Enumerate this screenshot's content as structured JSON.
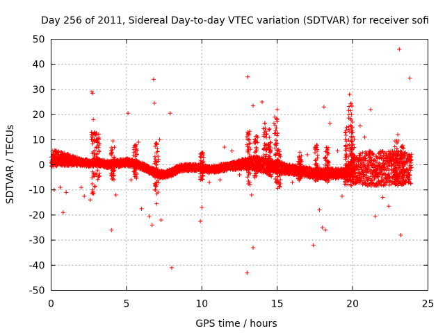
{
  "chart_data": {
    "type": "scatter",
    "title": "Day 256 of 2011, Sidereal Day-to-day VTEC variation (SDTVAR) for receiver sofi",
    "xlabel": "GPS time / hours",
    "ylabel": "SDTVAR / TECUs",
    "xlim": [
      0,
      25
    ],
    "ylim": [
      -50,
      50
    ],
    "xticks": [
      0,
      5,
      10,
      15,
      20,
      25
    ],
    "yticks": [
      -50,
      -40,
      -30,
      -20,
      -10,
      0,
      10,
      20,
      30,
      40,
      50
    ],
    "xtick_labels": [
      "0",
      "5",
      "10",
      "15",
      "20",
      "25"
    ],
    "ytick_labels": [
      "-50",
      "-40",
      "-30",
      "-20",
      "-10",
      "0",
      "10",
      "20",
      "30",
      "40",
      "50"
    ],
    "grid": true,
    "marker": "+",
    "series_color": "#ff0000",
    "band_center": [
      [
        0,
        2.5
      ],
      [
        0.5,
        2.5
      ],
      [
        1,
        2
      ],
      [
        1.5,
        1.5
      ],
      [
        2,
        1
      ],
      [
        2.5,
        0.5
      ],
      [
        3,
        1
      ],
      [
        3.5,
        0.5
      ],
      [
        4,
        0
      ],
      [
        4.5,
        0.5
      ],
      [
        5,
        1
      ],
      [
        5.5,
        0.5
      ],
      [
        6,
        -0.5
      ],
      [
        6.5,
        -2
      ],
      [
        7,
        -3.5
      ],
      [
        7.5,
        -4
      ],
      [
        8,
        -3
      ],
      [
        8.5,
        -1.5
      ],
      [
        9,
        -1
      ],
      [
        9.5,
        -1
      ],
      [
        10,
        -1.5
      ],
      [
        10.5,
        -2
      ],
      [
        11,
        -1.5
      ],
      [
        11.5,
        -1
      ],
      [
        12,
        -0.5
      ],
      [
        12.5,
        0
      ],
      [
        13,
        0.5
      ],
      [
        13.5,
        0.5
      ],
      [
        14,
        0
      ],
      [
        14.5,
        -0.5
      ],
      [
        15,
        -1
      ],
      [
        15.5,
        -1.5
      ],
      [
        16,
        -2
      ],
      [
        16.5,
        -2.5
      ],
      [
        17,
        -3
      ],
      [
        17.5,
        -3.5
      ],
      [
        18,
        -3.5
      ],
      [
        18.5,
        -3.5
      ],
      [
        19,
        -3.5
      ],
      [
        19.5,
        -3.5
      ],
      [
        20,
        -2
      ],
      [
        20.5,
        -1.5
      ],
      [
        21,
        -1.5
      ],
      [
        21.5,
        -1.5
      ],
      [
        22,
        -1.5
      ],
      [
        22.5,
        -1.5
      ],
      [
        23,
        -1.5
      ],
      [
        23.5,
        -1.5
      ],
      [
        23.9,
        -1.5
      ]
    ],
    "band_halfwidth": [
      [
        0,
        3.5
      ],
      [
        1,
        2.5
      ],
      [
        2,
        1.5
      ],
      [
        4,
        1.5
      ],
      [
        5,
        1.5
      ],
      [
        7,
        1.5
      ],
      [
        8,
        1.5
      ],
      [
        10,
        1.5
      ],
      [
        12,
        1.5
      ],
      [
        13,
        2.5
      ],
      [
        14,
        3
      ],
      [
        15,
        2.5
      ],
      [
        16,
        2
      ],
      [
        17,
        2
      ],
      [
        18,
        2
      ],
      [
        19.5,
        2
      ],
      [
        20,
        5.5
      ],
      [
        21,
        7
      ],
      [
        22,
        7
      ],
      [
        23,
        7
      ],
      [
        23.9,
        6
      ]
    ],
    "outliers": [
      [
        0.2,
        -10
      ],
      [
        0.6,
        -9
      ],
      [
        0.8,
        -19
      ],
      [
        1.0,
        -11
      ],
      [
        2.0,
        -9
      ],
      [
        2.2,
        -12.5
      ],
      [
        2.6,
        -14
      ],
      [
        2.7,
        29
      ],
      [
        2.75,
        28.5
      ],
      [
        2.8,
        18
      ],
      [
        2.9,
        13
      ],
      [
        3.0,
        10
      ],
      [
        4.0,
        -26
      ],
      [
        4.1,
        9.5
      ],
      [
        4.2,
        7
      ],
      [
        4.3,
        -12
      ],
      [
        5.1,
        20.5
      ],
      [
        5.3,
        -6
      ],
      [
        5.8,
        9
      ],
      [
        6.0,
        -17.5
      ],
      [
        6.5,
        -20.5
      ],
      [
        6.7,
        -24
      ],
      [
        6.8,
        34
      ],
      [
        6.85,
        24.5
      ],
      [
        7.0,
        -15.5
      ],
      [
        7.2,
        10
      ],
      [
        7.3,
        -22
      ],
      [
        7.5,
        -5
      ],
      [
        7.9,
        20.5
      ],
      [
        8.0,
        -41
      ],
      [
        8.8,
        -0.5
      ],
      [
        10.0,
        -17
      ],
      [
        9.9,
        -22.5
      ],
      [
        10.5,
        -7
      ],
      [
        11.2,
        -6
      ],
      [
        11.5,
        7
      ],
      [
        12.0,
        5.5
      ],
      [
        12.5,
        -4
      ],
      [
        13.0,
        -43
      ],
      [
        13.05,
        35
      ],
      [
        13.2,
        -8
      ],
      [
        13.3,
        -12
      ],
      [
        13.4,
        -33
      ],
      [
        13.4,
        23.5
      ],
      [
        13.5,
        10
      ],
      [
        14.0,
        25
      ],
      [
        14.3,
        12
      ],
      [
        14.5,
        5
      ],
      [
        15.0,
        22
      ],
      [
        16.0,
        -7
      ],
      [
        16.5,
        5
      ],
      [
        17.0,
        4
      ],
      [
        17.4,
        -32
      ],
      [
        17.5,
        7
      ],
      [
        17.8,
        -18
      ],
      [
        18.0,
        -25
      ],
      [
        18.1,
        23
      ],
      [
        18.2,
        -26
      ],
      [
        18.5,
        16.5
      ],
      [
        19.0,
        5.5
      ],
      [
        19.3,
        -12.5
      ],
      [
        19.5,
        3
      ],
      [
        19.8,
        28
      ],
      [
        20.0,
        17
      ],
      [
        20.5,
        15.5
      ],
      [
        20.8,
        11
      ],
      [
        21.2,
        22
      ],
      [
        21.5,
        -20.5
      ],
      [
        22.0,
        -13
      ],
      [
        22.4,
        -16.5
      ],
      [
        23.0,
        12
      ],
      [
        23.1,
        46
      ],
      [
        23.2,
        -28
      ],
      [
        23.8,
        34.5
      ],
      [
        23.5,
        5
      ]
    ],
    "spikes": [
      {
        "x": 2.8,
        "top": 13,
        "bottom": -12
      },
      {
        "x": 3.1,
        "top": 13,
        "bottom": -8
      },
      {
        "x": 4.1,
        "top": 7,
        "bottom": -6
      },
      {
        "x": 5.6,
        "top": 8,
        "bottom": -6
      },
      {
        "x": 7.0,
        "top": 9,
        "bottom": -12
      },
      {
        "x": 10.0,
        "top": 5,
        "bottom": -6
      },
      {
        "x": 13.1,
        "top": 14,
        "bottom": -8
      },
      {
        "x": 13.6,
        "top": 12,
        "bottom": -6
      },
      {
        "x": 14.2,
        "top": 18,
        "bottom": -4
      },
      {
        "x": 14.5,
        "top": 15,
        "bottom": -5
      },
      {
        "x": 14.9,
        "top": 20,
        "bottom": -8
      },
      {
        "x": 15.1,
        "top": 6,
        "bottom": -10
      },
      {
        "x": 16.5,
        "top": 4,
        "bottom": -7
      },
      {
        "x": 17.6,
        "top": 8,
        "bottom": -7
      },
      {
        "x": 18.3,
        "top": 7,
        "bottom": -7
      },
      {
        "x": 19.6,
        "top": 15,
        "bottom": -8
      },
      {
        "x": 19.85,
        "top": 27,
        "bottom": -9
      },
      {
        "x": 20.0,
        "top": 15,
        "bottom": -8
      },
      {
        "x": 22.9,
        "top": 10,
        "bottom": -9
      },
      {
        "x": 23.3,
        "top": 8,
        "bottom": -10
      }
    ]
  }
}
